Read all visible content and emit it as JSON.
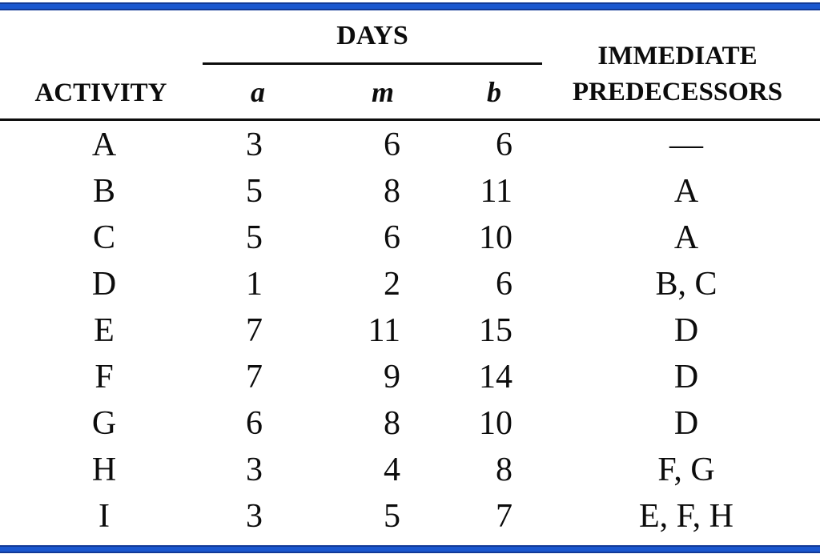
{
  "table": {
    "header": {
      "activity_label": "ACTIVITY",
      "days_label": "DAYS",
      "a_label": "a",
      "m_label": "m",
      "b_label": "b",
      "predecessors_line1": "IMMEDIATE",
      "predecessors_line2": "PREDECESSORS"
    },
    "rows": [
      {
        "activity": "A",
        "a": "3",
        "m": "6",
        "b": "6",
        "pred": "—"
      },
      {
        "activity": "B",
        "a": "5",
        "m": "8",
        "b": "11",
        "pred": "A"
      },
      {
        "activity": "C",
        "a": "5",
        "m": "6",
        "b": "10",
        "pred": "A"
      },
      {
        "activity": "D",
        "a": "1",
        "m": "2",
        "b": "6",
        "pred": "B, C"
      },
      {
        "activity": "E",
        "a": "7",
        "m": "11",
        "b": "15",
        "pred": "D"
      },
      {
        "activity": "F",
        "a": "7",
        "m": "9",
        "b": "14",
        "pred": "D"
      },
      {
        "activity": "G",
        "a": "6",
        "m": "8",
        "b": "10",
        "pred": "D"
      },
      {
        "activity": "H",
        "a": "3",
        "m": "4",
        "b": "8",
        "pred": "F, G"
      },
      {
        "activity": "I",
        "a": "3",
        "m": "5",
        "b": "7",
        "pred": "E, F, H"
      }
    ]
  },
  "colors": {
    "accent_blue": "#1a57cf",
    "accent_blue_dark": "#123a97",
    "text": "#0c0c0c"
  },
  "chart_data": {
    "type": "table",
    "column_group": {
      "label": "DAYS",
      "columns": [
        "a",
        "m",
        "b"
      ]
    },
    "columns": [
      "ACTIVITY",
      "a",
      "m",
      "b",
      "IMMEDIATE PREDECESSORS"
    ],
    "rows": [
      [
        "A",
        3,
        6,
        6,
        "—"
      ],
      [
        "B",
        5,
        8,
        11,
        "A"
      ],
      [
        "C",
        5,
        6,
        10,
        "A"
      ],
      [
        "D",
        1,
        2,
        6,
        "B, C"
      ],
      [
        "E",
        7,
        11,
        15,
        "D"
      ],
      [
        "F",
        7,
        9,
        14,
        "D"
      ],
      [
        "G",
        6,
        8,
        10,
        "D"
      ],
      [
        "H",
        3,
        4,
        8,
        "F, G"
      ],
      [
        "I",
        3,
        5,
        7,
        "E, F, H"
      ]
    ]
  }
}
